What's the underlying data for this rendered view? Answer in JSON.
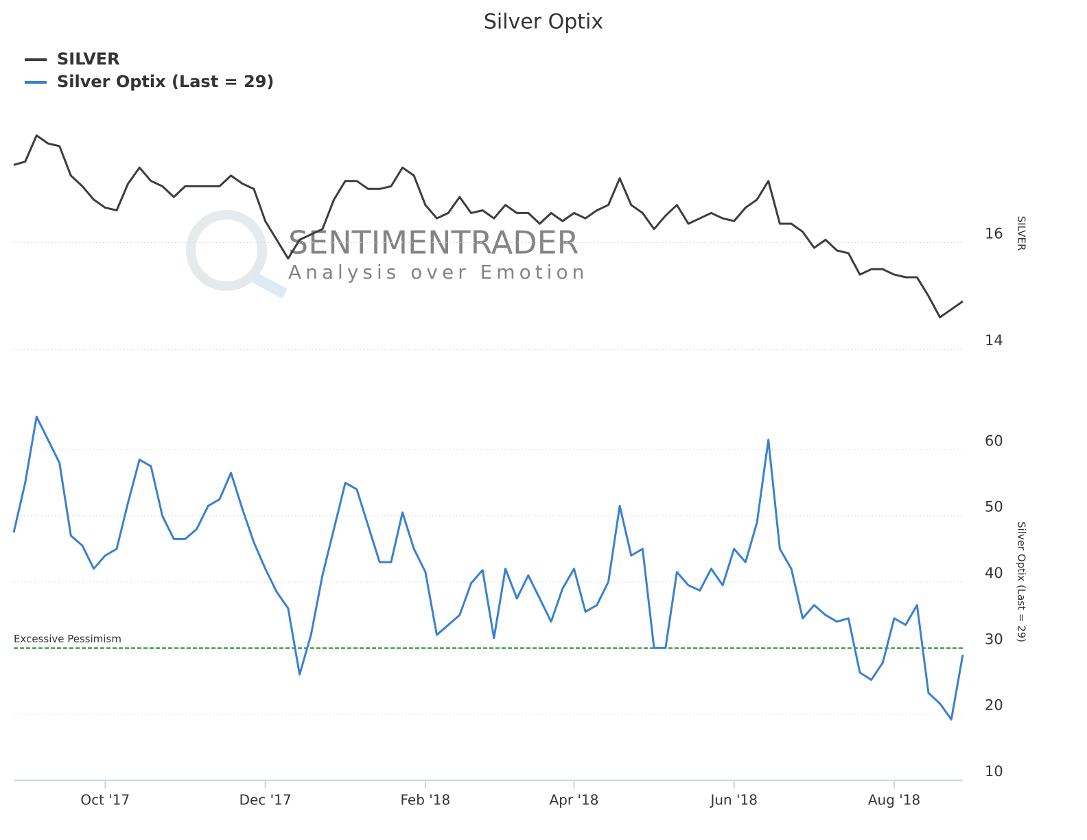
{
  "chart_data": [
    {
      "type": "line",
      "title": "Silver Optix",
      "watermark": [
        "SENTIMENTRADER",
        "Analysis over Emotion"
      ],
      "y_label": "SILVER",
      "ylim": [
        13.4,
        18.3
      ],
      "yticks": [
        14,
        16
      ],
      "grid": true,
      "series": [
        {
          "name": "SILVER",
          "color": "#3d3d3d",
          "values": [
            17.45,
            17.51,
            18.0,
            17.85,
            17.8,
            17.25,
            17.05,
            16.8,
            16.65,
            16.6,
            17.1,
            17.4,
            17.15,
            17.05,
            16.85,
            17.05,
            17.05,
            17.05,
            17.05,
            17.25,
            17.1,
            17.0,
            16.4,
            16.05,
            15.7,
            16.05,
            16.15,
            16.25,
            16.8,
            17.15,
            17.15,
            17.0,
            17.0,
            17.05,
            17.4,
            17.25,
            16.7,
            16.45,
            16.55,
            16.85,
            16.55,
            16.6,
            16.45,
            16.7,
            16.55,
            16.55,
            16.35,
            16.55,
            16.4,
            16.55,
            16.45,
            16.6,
            16.7,
            17.2,
            16.7,
            16.55,
            16.25,
            16.5,
            16.7,
            16.35,
            16.45,
            16.55,
            16.45,
            16.4,
            16.65,
            16.8,
            17.15,
            16.35,
            16.35,
            16.2,
            15.9,
            16.05,
            15.85,
            15.8,
            15.4,
            15.5,
            15.5,
            15.4,
            15.35,
            15.35,
            15.0,
            14.6,
            14.75,
            14.9
          ]
        }
      ]
    },
    {
      "type": "line",
      "y_label": "Silver Optix (Last = 29)",
      "ylim": [
        10,
        70
      ],
      "yticks": [
        10,
        20,
        30,
        40,
        50,
        60
      ],
      "grid": true,
      "threshold": {
        "value": 30,
        "label": "Excessive Pessimism",
        "color": "#1a8a1a"
      },
      "categories": [
        null,
        null,
        null,
        null,
        null,
        null,
        null,
        null,
        "Oct '17",
        null,
        null,
        null,
        null,
        null,
        null,
        null,
        null,
        null,
        null,
        null,
        null,
        null,
        "Dec '17",
        null,
        null,
        null,
        null,
        null,
        null,
        null,
        null,
        null,
        null,
        null,
        null,
        null,
        "Feb '18",
        null,
        null,
        null,
        null,
        null,
        null,
        null,
        null,
        null,
        null,
        null,
        null,
        "Apr '18",
        null,
        null,
        null,
        null,
        null,
        null,
        null,
        null,
        null,
        null,
        null,
        null,
        null,
        "Jun '18",
        null,
        null,
        null,
        null,
        null,
        null,
        null,
        null,
        null,
        null,
        null,
        null,
        null,
        "Aug '18",
        null,
        null,
        null,
        null,
        null,
        null
      ],
      "series": [
        {
          "name": "Silver Optix (Last = 29)",
          "color": "#3a80d0",
          "values": [
            47.5,
            55,
            65,
            61.5,
            58,
            47,
            45.5,
            42,
            44,
            45,
            52,
            58.5,
            57.5,
            50,
            46.5,
            46.5,
            48,
            51.5,
            52.5,
            56.5,
            51,
            46,
            42,
            38.5,
            36,
            26,
            32,
            41,
            48,
            55,
            54,
            48.5,
            43,
            43,
            50.5,
            45,
            41.5,
            32,
            33.5,
            35,
            39.8,
            41.8,
            31.5,
            42,
            37.5,
            41,
            37.5,
            34,
            39,
            42,
            35.5,
            36.5,
            40,
            51.5,
            44,
            45,
            30,
            30,
            41.5,
            39.5,
            38.7,
            42,
            39.5,
            45,
            43,
            49,
            61.5,
            45,
            42,
            34.5,
            36.5,
            35,
            34,
            34.5,
            26.3,
            25.2,
            27.8,
            34.5,
            33.5,
            36.5,
            23.2,
            21.6,
            19.2,
            29
          ]
        }
      ]
    }
  ]
}
